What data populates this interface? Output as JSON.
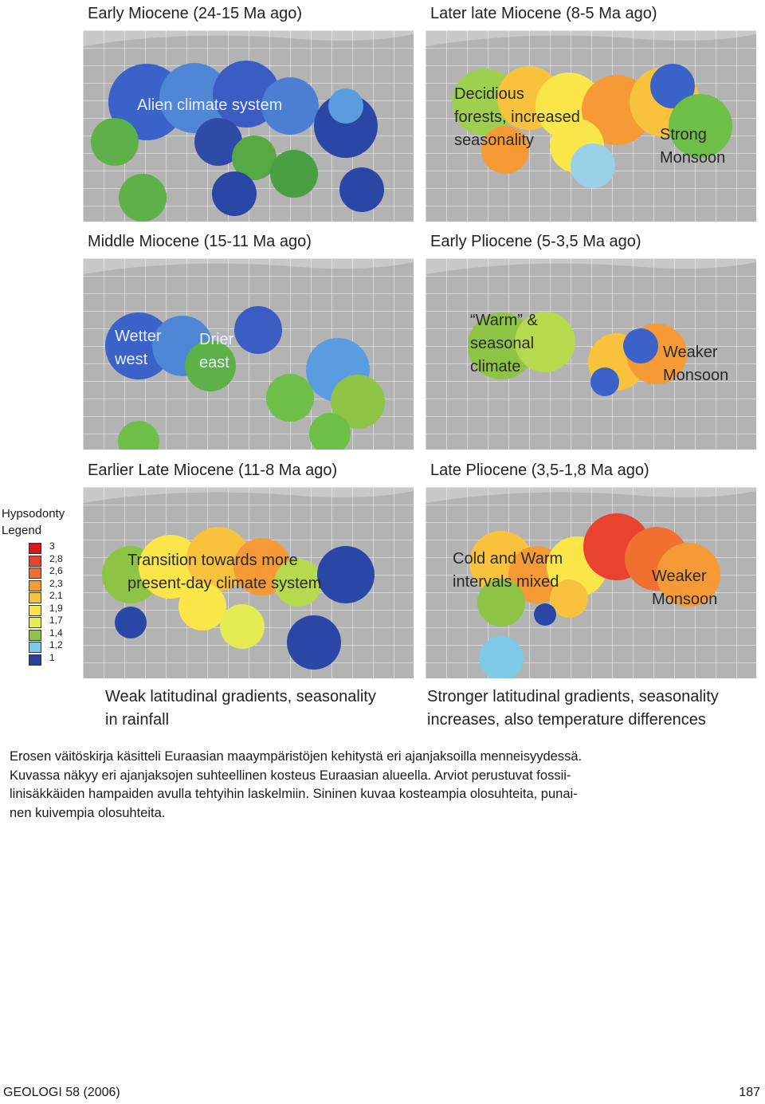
{
  "panels": {
    "p1": {
      "title": "Early Miocene (24-15 Ma ago)",
      "labels": [
        "Alien climate system"
      ]
    },
    "p2": {
      "title": "Later late Miocene (8-5 Ma ago)",
      "labels": [
        "Decidious",
        "forests, increased",
        "seasonality",
        "Strong",
        "Monsoon"
      ]
    },
    "p3": {
      "title": "Middle Miocene (15-11 Ma ago)",
      "labels": [
        "Wetter",
        "west",
        "Drier",
        "east"
      ]
    },
    "p4": {
      "title": "Early Pliocene (5-3,5 Ma ago)",
      "labels": [
        "“Warm” &",
        "seasonal",
        "climate",
        "Weaker",
        "Monsoon"
      ]
    },
    "p5": {
      "title": "Earlier Late Miocene (11-8 Ma ago)",
      "labels": [
        "Transition towards more",
        "present-day climate system"
      ]
    },
    "p6": {
      "title": "Late Pliocene (3,5-1,8 Ma ago)",
      "labels": [
        "Cold and Warm",
        "intervals mixed",
        "Weaker",
        "Monsoon"
      ]
    }
  },
  "legend": {
    "title_line1": "Hypsodonty",
    "title_line2": "Legend",
    "items": [
      {
        "value": "3",
        "color": "#d7191c"
      },
      {
        "value": "2,8",
        "color": "#e8432e"
      },
      {
        "value": "2,6",
        "color": "#f07030"
      },
      {
        "value": "2,3",
        "color": "#f59a35"
      },
      {
        "value": "2,1",
        "color": "#f8c23c"
      },
      {
        "value": "1,9",
        "color": "#fbe64a"
      },
      {
        "value": "1,7",
        "color": "#e3ec52"
      },
      {
        "value": "1,4",
        "color": "#8dc445"
      },
      {
        "value": "1,2",
        "color": "#7ec9e6"
      },
      {
        "value": "1",
        "color": "#2a3f9c"
      }
    ]
  },
  "notes": {
    "left_line1": "Weak latitudinal gradients, seasonality",
    "left_line2": "in rainfall",
    "right_line1": "Stronger latitudinal gradients, seasonality",
    "right_line2": "increases, also temperature differences"
  },
  "caption": {
    "line1": "Erosen väitöskirja käsitteli Euraasian maaympäristöjen kehitystä eri ajanjaksoilla menneisyydessä.",
    "line2": "Kuvassa näkyy eri ajanjaksojen suhteellinen kosteus Euraasian alueella. Arviot perustuvat fossii-",
    "line3": "linisäkkäiden hampaiden avulla tehtyihin laskelmiin. Sininen kuvaa kosteampia olosuhteita, punai-",
    "line4": "nen kuivempia olosuhteita."
  },
  "footer": {
    "journal": "GEOLOGI 58 (2006)",
    "page": "187"
  }
}
